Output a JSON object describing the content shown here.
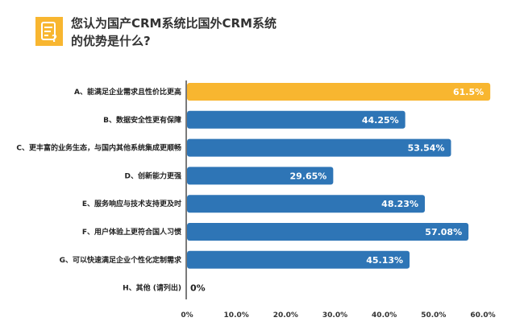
{
  "chart_data": {
    "type": "bar",
    "orientation": "horizontal",
    "title": "您认为国产CRM系统比国外CRM系统的优势是什么?",
    "categories": [
      "A、能满足企业需求且性价比更高",
      "B、数据安全性更有保障",
      "C、更丰富的业务生态，与国内其他系统集成更顺畅",
      "D、创新能力更强",
      "E、服务响应与技术支持更及时",
      "F、用户体验上更符合国人习惯",
      "G、可以快速满足企业个性化定制需求",
      "H、其他 (请列出)"
    ],
    "values": [
      61.5,
      44.25,
      53.54,
      29.65,
      48.23,
      57.08,
      45.13,
      0
    ],
    "labels": [
      "61.5%",
      "44.25%",
      "53.54%",
      "29.65%",
      "48.23%",
      "57.08%",
      "45.13%",
      "0%"
    ],
    "xlim": [
      0,
      60
    ],
    "xticks": [
      "0%",
      "10.0%",
      "20.0%",
      "30.0%",
      "40.0%",
      "50.0%",
      "60.0%"
    ],
    "xlabel": "",
    "ylabel": "",
    "grid": false,
    "colors": {
      "highlight": "#f8b630",
      "default": "#2e75b6"
    }
  }
}
